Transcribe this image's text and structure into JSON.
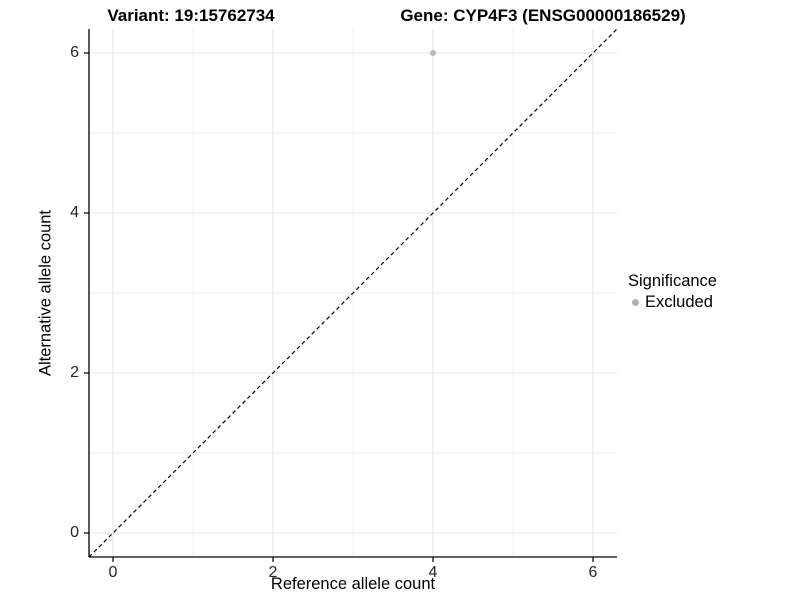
{
  "chart_data": {
    "type": "scatter",
    "title_variant": "Variant: 19:15762734",
    "title_gene": "Gene: CYP4F3 (ENSG00000186529)",
    "xlabel": "Reference allele count",
    "ylabel": "Alternative allele count",
    "xlim": [
      -0.3,
      6.3
    ],
    "ylim": [
      -0.3,
      6.3
    ],
    "xticks": [
      0,
      2,
      4,
      6
    ],
    "yticks": [
      0,
      2,
      4,
      6
    ],
    "minor_breaks": [
      1,
      3,
      5
    ],
    "grid": true,
    "identity_line": {
      "slope": 1,
      "intercept": 0,
      "style": "dashed"
    },
    "series": [
      {
        "name": "Excluded",
        "color": "#b9b9b9",
        "points": [
          {
            "x": 4,
            "y": 6
          }
        ]
      }
    ],
    "legend": {
      "position": "right",
      "title": "Significance",
      "entries": [
        {
          "label": "Excluded",
          "color": "#b0b0b0"
        }
      ]
    },
    "colors": {
      "background": "#ffffff",
      "grid_major": "#e4e4e4",
      "grid_minor": "#f0f0f0",
      "axis_line": "#000000",
      "tick": "#000000",
      "text": "#262626",
      "abline": "#000000"
    }
  }
}
